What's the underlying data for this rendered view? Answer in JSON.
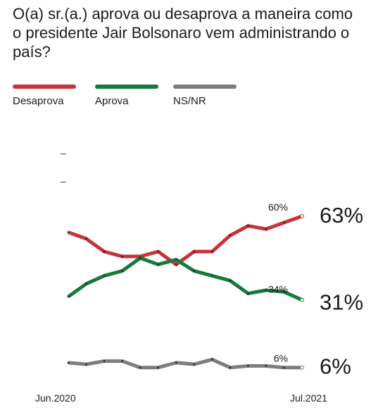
{
  "title": "O(a) sr.(a.) aprova ou desaprova a maneira como o presidente Jair Bolsonaro vem administrando o país?",
  "colors": {
    "desaprova": "#c8323a",
    "aprova": "#157a3c",
    "nsnr": "#7d7d7d"
  },
  "chart_data": {
    "type": "line",
    "title": "O(a) sr.(a.) aprova ou desaprova a maneira como o presidente Jair Bolsonaro vem administrando o país?",
    "x_start_label": "Jun.2020",
    "x_end_label": "Jul.2021",
    "ylim": [
      0,
      70
    ],
    "y_tick_labels": [
      "–",
      "–"
    ],
    "grid": false,
    "legend_position": "top",
    "series": [
      {
        "name": "Desaprova",
        "color": "#c8323a",
        "values": [
          46,
          44,
          40,
          38.5,
          38.5,
          40,
          36,
          40,
          40,
          45,
          48,
          47,
          49,
          51
        ],
        "annotation": "60%",
        "final_label": "63%"
      },
      {
        "name": "Aprova",
        "color": "#157a3c",
        "values": [
          26,
          30,
          32.5,
          34,
          38,
          36,
          37.5,
          34,
          32.5,
          31,
          27,
          28,
          27.5,
          25
        ],
        "annotation": "34%",
        "final_label": "31%"
      },
      {
        "name": "NS/NR",
        "color": "#7d7d7d",
        "values": [
          5.5,
          5,
          6,
          6,
          4,
          4,
          5.5,
          5,
          6.5,
          4,
          4.5,
          4.5,
          4,
          4
        ],
        "annotation": "6%",
        "final_label": "6%"
      }
    ]
  }
}
